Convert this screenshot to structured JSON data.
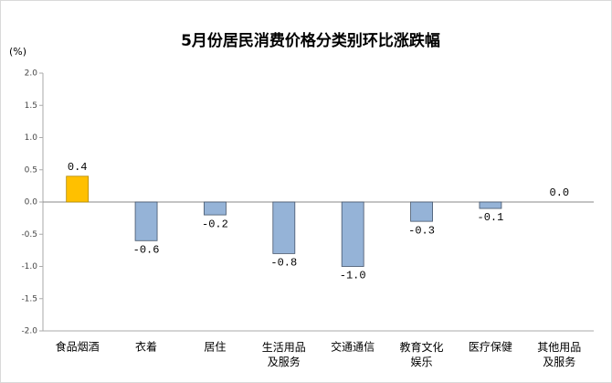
{
  "chart_data": {
    "type": "bar",
    "title": "5月份居民消费价格分类别环比涨跌幅",
    "y_label": "(%)",
    "categories": [
      "食品烟酒",
      "衣着",
      "居住",
      "生活用品及服务",
      "交通通信",
      "教育文化娱乐",
      "医疗保健",
      "其他用品及服务"
    ],
    "values": [
      0.4,
      -0.6,
      -0.2,
      -0.8,
      -1.0,
      -0.3,
      -0.1,
      0.0
    ],
    "value_labels": [
      "0.4",
      "-0.6",
      "-0.2",
      "-0.8",
      "-1.0",
      "-0.3",
      "-0.1",
      "0.0"
    ],
    "colors": [
      "#ffc000",
      "#95b3d7",
      "#95b3d7",
      "#95b3d7",
      "#95b3d7",
      "#95b3d7",
      "#95b3d7",
      "#95b3d7"
    ],
    "ylim": [
      -2.0,
      2.0
    ],
    "yticks": [
      {
        "value": 2.0,
        "label": "2.0"
      },
      {
        "value": 1.5,
        "label": "1.5"
      },
      {
        "value": 1.0,
        "label": "1.0"
      },
      {
        "value": 0.5,
        "label": "0.5"
      },
      {
        "value": 0.0,
        "label": "0.0"
      },
      {
        "value": -0.5,
        "label": "-0.5"
      },
      {
        "value": -1.0,
        "label": "-1.0"
      },
      {
        "value": -1.5,
        "label": "-1.5"
      },
      {
        "value": -2.0,
        "label": "-2.0"
      }
    ]
  }
}
